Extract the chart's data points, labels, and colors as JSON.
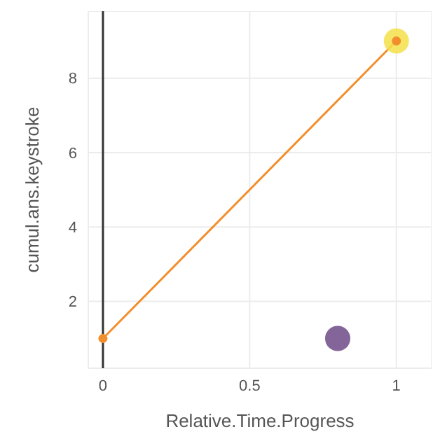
{
  "chart_data": {
    "type": "line",
    "xlabel": "Relative.Time.Progress",
    "ylabel": "cumul.ans.keystroke",
    "series": [
      {
        "color": "#f28e2b",
        "x": [
          0,
          1
        ],
        "values": [
          1,
          9
        ],
        "marker": "circle"
      },
      {
        "type": "scatter",
        "x": [
          1,
          0.8
        ],
        "values": [
          9,
          1
        ],
        "colors": [
          "#f5e04a",
          "#6f4a87"
        ]
      }
    ],
    "xlim": [
      -0.05,
      1.12
    ],
    "xticks": [
      0,
      0.5,
      1
    ],
    "ylim": [
      0.2,
      9.8
    ],
    "yticks": [
      2,
      4,
      6,
      8
    ],
    "grid": true,
    "ref_lines": [
      {
        "axis": "x",
        "value": 0,
        "color": "#333333"
      }
    ]
  }
}
